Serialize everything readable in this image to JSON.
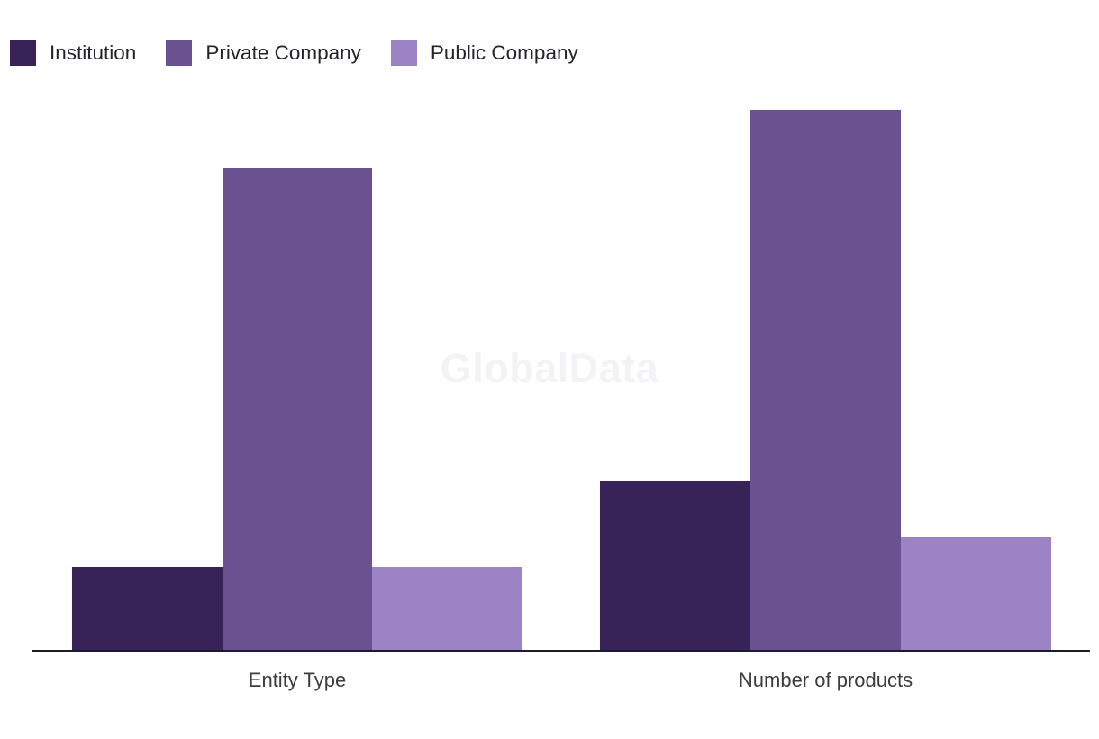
{
  "watermark_text": "GlobalData",
  "chart_data": {
    "type": "bar",
    "categories": [
      "Entity Type",
      "Number of products"
    ],
    "series": [
      {
        "name": "Institution",
        "color": "#372358",
        "values": [
          15.5,
          31.3
        ]
      },
      {
        "name": "Private Company",
        "color": "#6a5190",
        "values": [
          89.3,
          100
        ]
      },
      {
        "name": "Public Company",
        "color": "#9c84c4",
        "values": [
          15.5,
          21
        ]
      }
    ],
    "title": "",
    "xlabel": "",
    "ylabel": "",
    "ylim": [
      0,
      100
    ],
    "grid": false,
    "legend_position": "top-left",
    "y_axis_visible": false,
    "axis_color": "#1b1a2e",
    "note": "No y-axis, gridlines or value labels are shown; series values are estimated relative bar heights as percent of the tallest bar.",
    "watermark": "GlobalData"
  }
}
